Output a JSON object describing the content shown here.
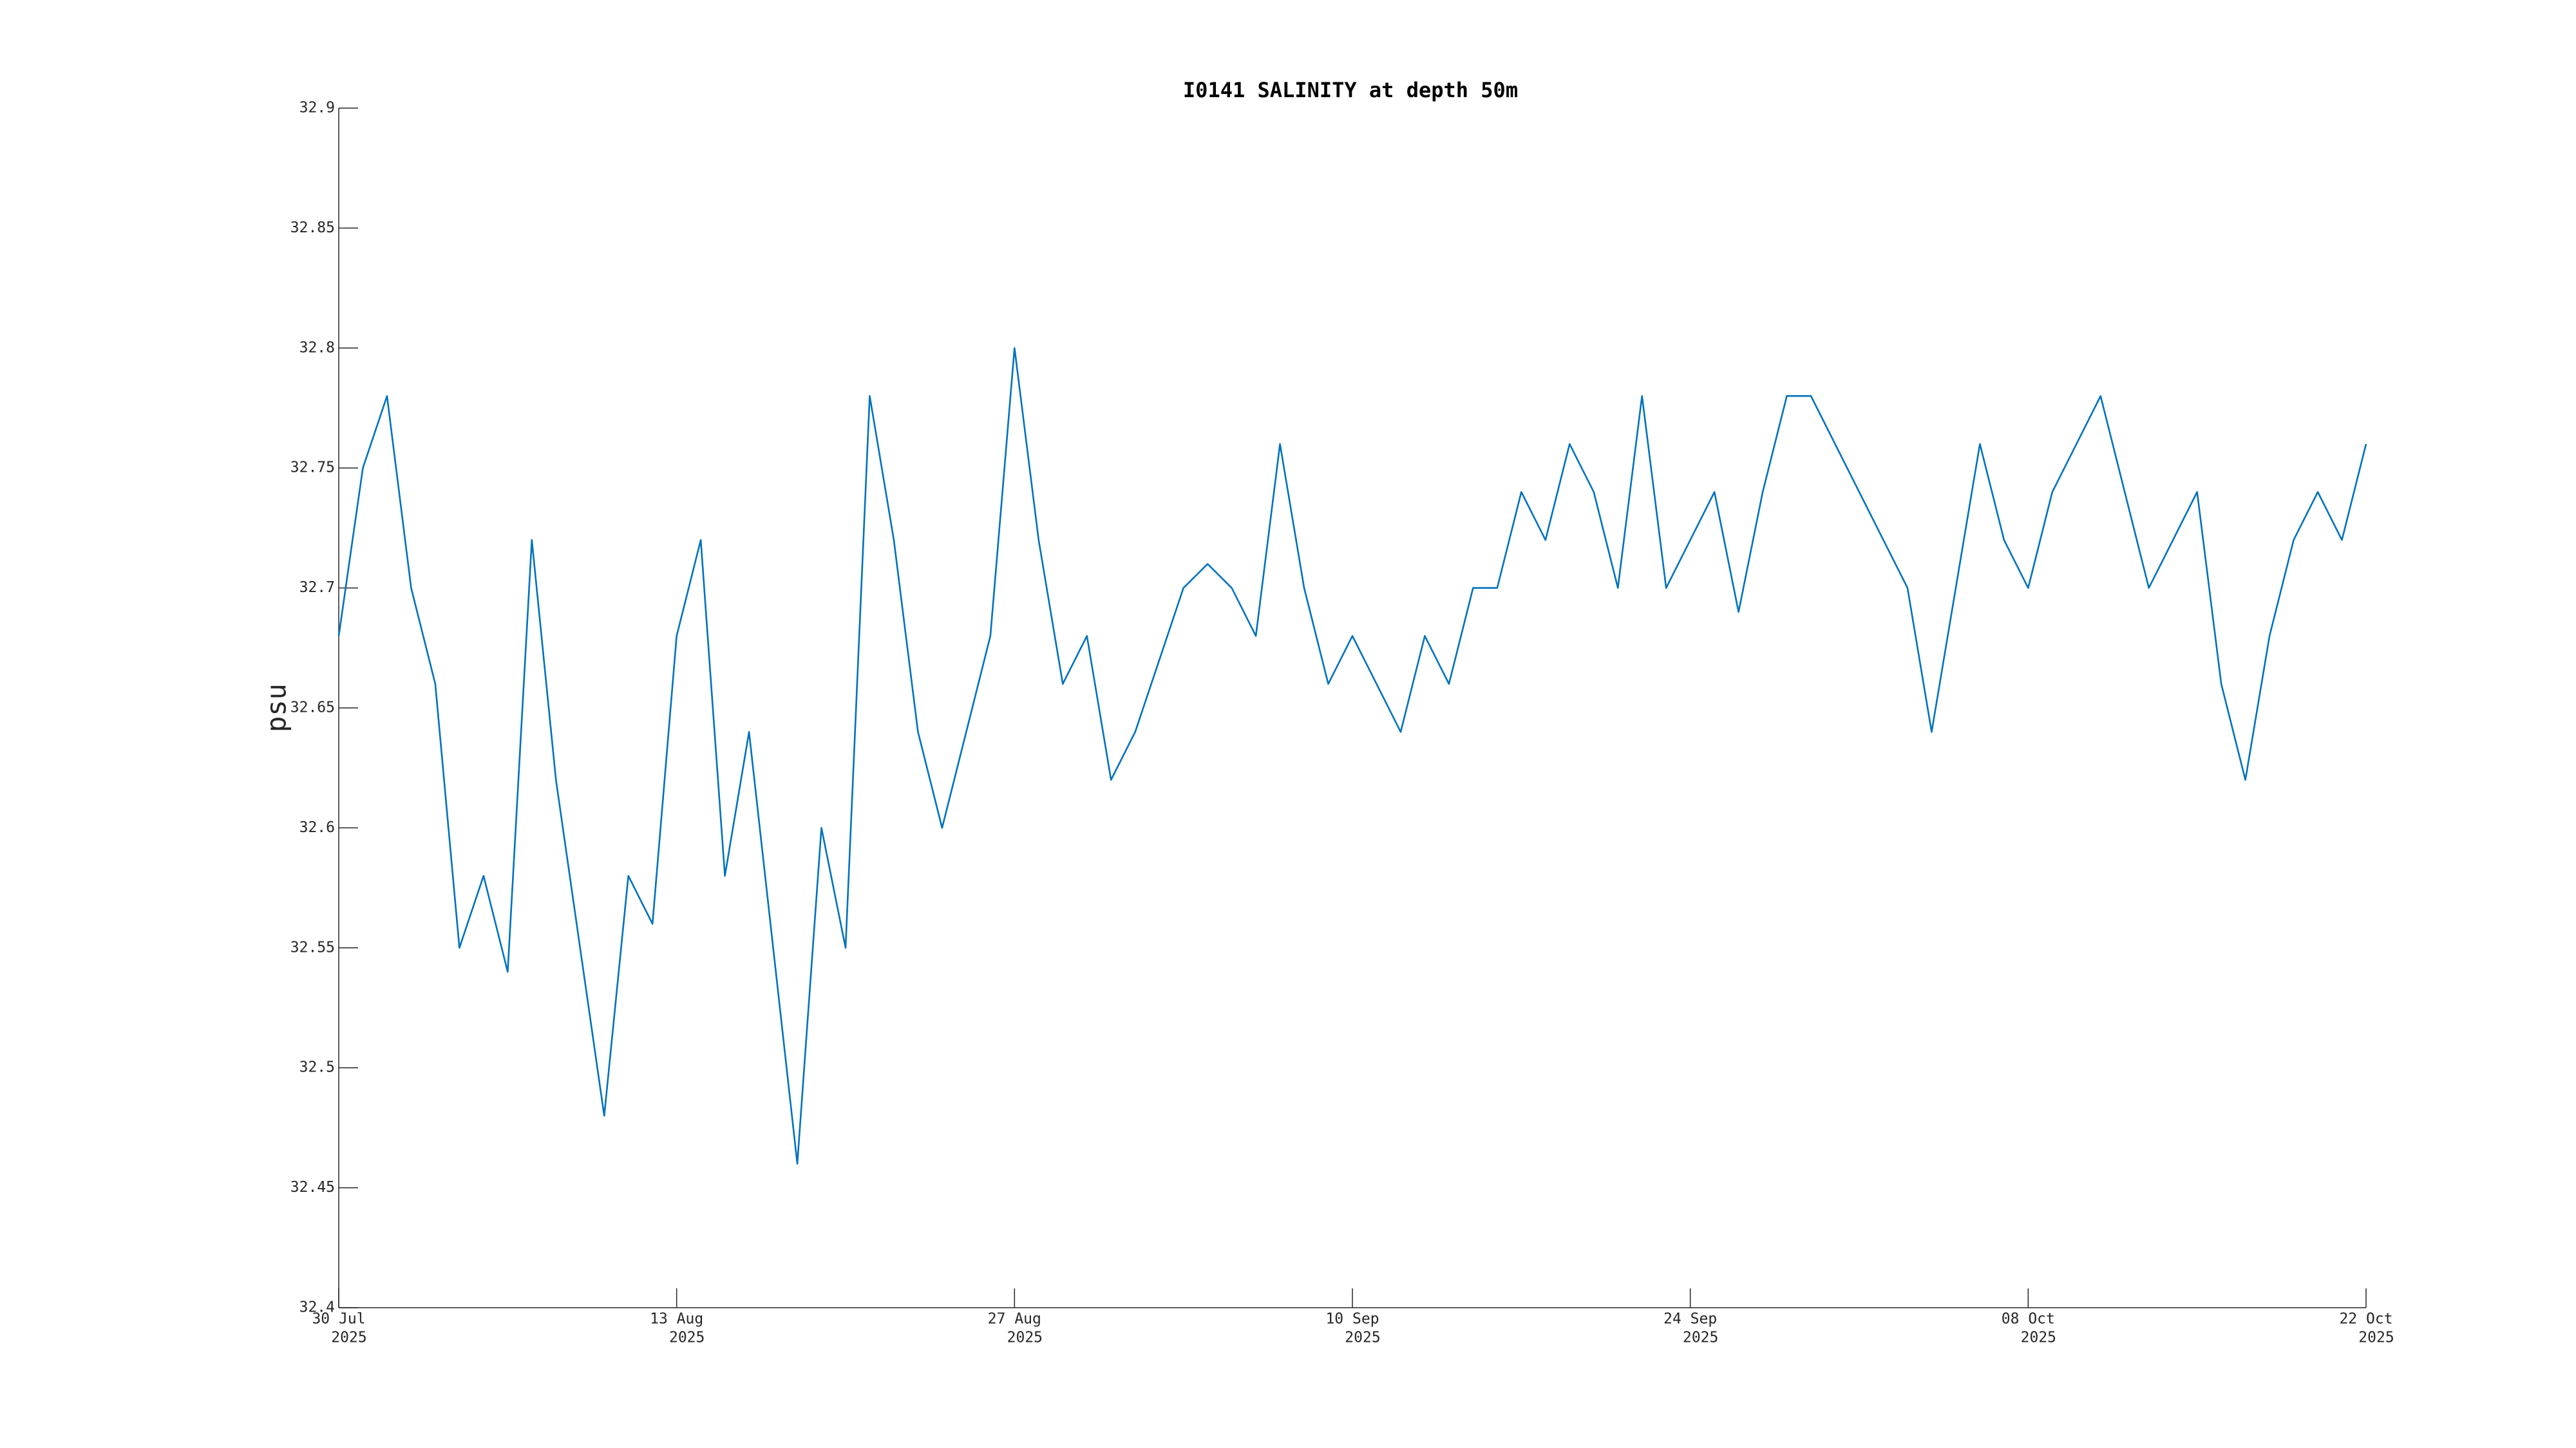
{
  "chart_data": {
    "type": "line",
    "title": "I0141 SALINITY at depth 50m",
    "y_label": "psu",
    "x": [
      "2025-07-30",
      "2025-07-31",
      "2025-08-01",
      "2025-08-02",
      "2025-08-03",
      "2025-08-04",
      "2025-08-05",
      "2025-08-06",
      "2025-08-07",
      "2025-08-08",
      "2025-08-09",
      "2025-08-10",
      "2025-08-11",
      "2025-08-12",
      "2025-08-13",
      "2025-08-14",
      "2025-08-15",
      "2025-08-16",
      "2025-08-17",
      "2025-08-18",
      "2025-08-19",
      "2025-08-20",
      "2025-08-21",
      "2025-08-22",
      "2025-08-23",
      "2025-08-24",
      "2025-08-25",
      "2025-08-26",
      "2025-08-27",
      "2025-08-28",
      "2025-08-29",
      "2025-08-30",
      "2025-08-31",
      "2025-09-01",
      "2025-09-02",
      "2025-09-03",
      "2025-09-04",
      "2025-09-05",
      "2025-09-06",
      "2025-09-07",
      "2025-09-08",
      "2025-09-09",
      "2025-09-10",
      "2025-09-11",
      "2025-09-12",
      "2025-09-13",
      "2025-09-14",
      "2025-09-15",
      "2025-09-16",
      "2025-09-17",
      "2025-09-18",
      "2025-09-19",
      "2025-09-20",
      "2025-09-21",
      "2025-09-22",
      "2025-09-23",
      "2025-09-24",
      "2025-09-25",
      "2025-09-26",
      "2025-09-27",
      "2025-09-28",
      "2025-09-29",
      "2025-09-30",
      "2025-10-01",
      "2025-10-02",
      "2025-10-03",
      "2025-10-04",
      "2025-10-05",
      "2025-10-06",
      "2025-10-07",
      "2025-10-08",
      "2025-10-09",
      "2025-10-10",
      "2025-10-11",
      "2025-10-12",
      "2025-10-13",
      "2025-10-14",
      "2025-10-15",
      "2025-10-16",
      "2025-10-17",
      "2025-10-18",
      "2025-10-19",
      "2025-10-20",
      "2025-10-21",
      "2025-10-22"
    ],
    "values": [
      32.68,
      32.75,
      32.78,
      32.7,
      32.66,
      32.55,
      32.58,
      32.54,
      32.72,
      32.62,
      32.55,
      32.48,
      32.58,
      32.56,
      32.68,
      32.72,
      32.58,
      32.64,
      32.55,
      32.46,
      32.6,
      32.55,
      32.78,
      32.72,
      32.64,
      32.6,
      32.64,
      32.68,
      32.8,
      32.72,
      32.66,
      32.68,
      32.62,
      32.64,
      32.67,
      32.7,
      32.71,
      32.7,
      32.68,
      32.76,
      32.7,
      32.66,
      32.68,
      32.66,
      32.64,
      32.68,
      32.66,
      32.7,
      32.7,
      32.74,
      32.72,
      32.76,
      32.74,
      32.7,
      32.78,
      32.7,
      32.72,
      32.74,
      32.69,
      32.74,
      32.78,
      32.78,
      32.76,
      32.74,
      32.72,
      32.7,
      32.64,
      32.7,
      32.76,
      32.72,
      32.7,
      32.74,
      32.76,
      32.78,
      32.74,
      32.7,
      32.72,
      32.74,
      32.66,
      32.62,
      32.68,
      32.72,
      32.74,
      32.72,
      32.76
    ],
    "color": "#0072bd",
    "xlim": [
      "2025-07-30",
      "2025-10-22"
    ],
    "xticks": [
      {
        "value": "2025-07-30",
        "label": [
          "30 Jul",
          "2025"
        ]
      },
      {
        "value": "2025-08-13",
        "label": [
          "13 Aug",
          "2025"
        ]
      },
      {
        "value": "2025-08-27",
        "label": [
          "27 Aug",
          "2025"
        ]
      },
      {
        "value": "2025-09-10",
        "label": [
          "10 Sep",
          "2025"
        ]
      },
      {
        "value": "2025-09-24",
        "label": [
          "24 Sep",
          "2025"
        ]
      },
      {
        "value": "2025-10-08",
        "label": [
          "08 Oct",
          "2025"
        ]
      },
      {
        "value": "2025-10-22",
        "label": [
          "22 Oct",
          "2025"
        ]
      }
    ],
    "ylim": [
      32.4,
      32.9
    ],
    "yticks": [
      32.4,
      32.45,
      32.5,
      32.55,
      32.6,
      32.65,
      32.7,
      32.75,
      32.8,
      32.85,
      32.9
    ],
    "grid": false
  }
}
